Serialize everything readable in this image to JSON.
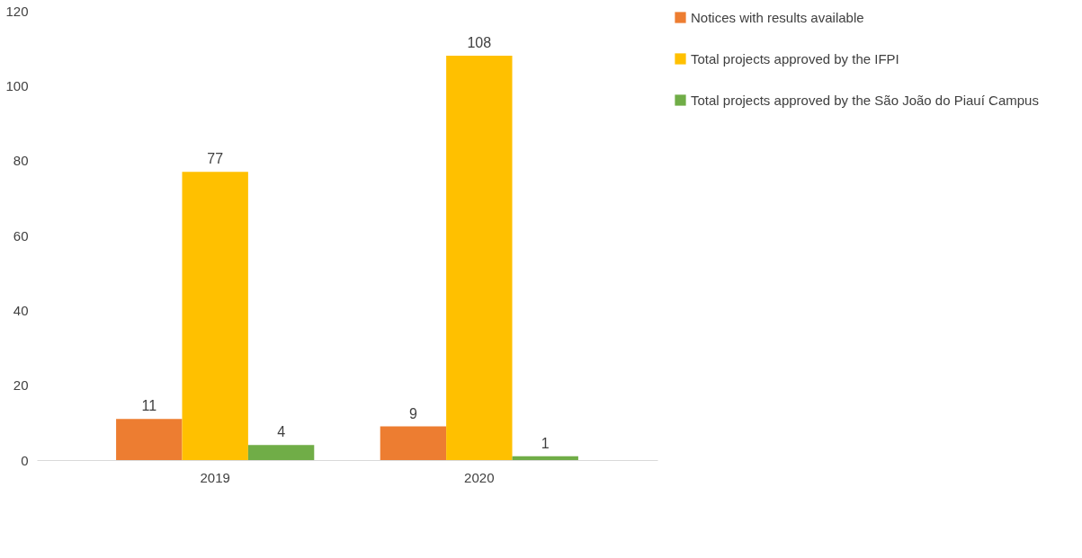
{
  "chart_data": {
    "type": "bar",
    "categories": [
      "2019",
      "2020"
    ],
    "series": [
      {
        "name": "Notices with results available",
        "color": "#ed7d31",
        "values": [
          11,
          9
        ]
      },
      {
        "name": "Total projects approved by the IFPI",
        "color": "#ffc000",
        "values": [
          77,
          108
        ]
      },
      {
        "name": "Total projects approved by the São João do Piauí Campus",
        "color": "#70ad47",
        "values": [
          4,
          1
        ]
      }
    ],
    "ylim": [
      0,
      120
    ],
    "yticks": [
      0,
      20,
      40,
      60,
      80,
      100,
      120
    ],
    "grid": false,
    "legend": "right",
    "data_labels": true
  }
}
